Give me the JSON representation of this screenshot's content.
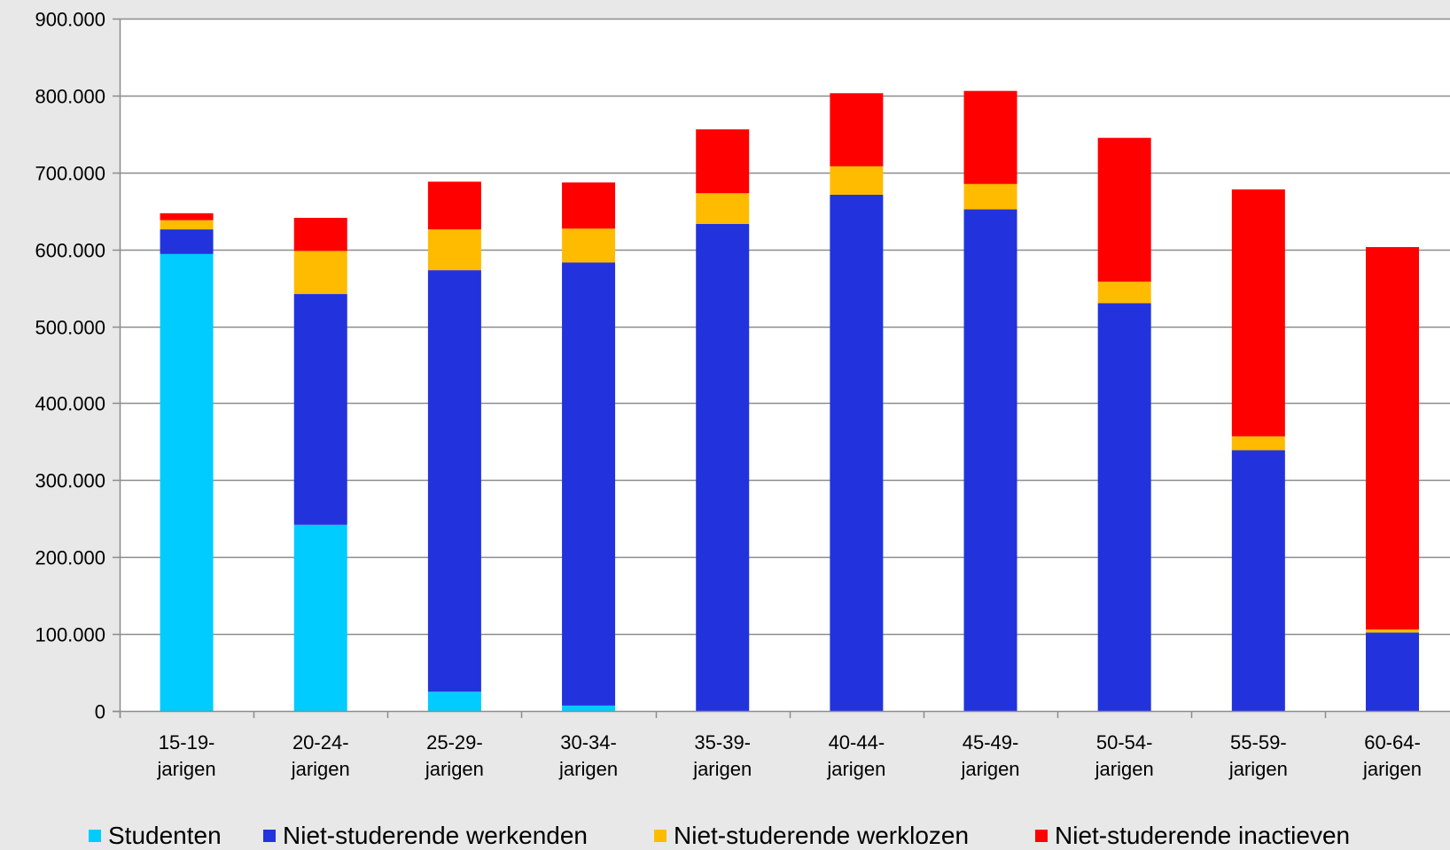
{
  "chart_data": {
    "type": "bar",
    "stacked": true,
    "title": "",
    "xlabel": "",
    "ylabel": "",
    "ylim": [
      0,
      900000
    ],
    "yticks": [
      0,
      100000,
      200000,
      300000,
      400000,
      500000,
      600000,
      700000,
      800000,
      900000
    ],
    "ytick_labels": [
      "0",
      "100.000",
      "200.000",
      "300.000",
      "400.000",
      "500.000",
      "600.000",
      "700.000",
      "800.000",
      "900.000"
    ],
    "grid": true,
    "legend_position": "bottom",
    "categories": [
      [
        "15-19-",
        "jarigen"
      ],
      [
        "20-24-",
        "jarigen"
      ],
      [
        "25-29-",
        "jarigen"
      ],
      [
        "30-34-",
        "jarigen"
      ],
      [
        "35-39-",
        "jarigen"
      ],
      [
        "40-44-",
        "jarigen"
      ],
      [
        "45-49-",
        "jarigen"
      ],
      [
        "50-54-",
        "jarigen"
      ],
      [
        "55-59-",
        "jarigen"
      ],
      [
        "60-64-",
        "jarigen"
      ]
    ],
    "series": [
      {
        "name": "Studenten",
        "color": "#00ccff",
        "values": [
          594000,
          242000,
          25000,
          7000,
          0,
          0,
          0,
          0,
          0,
          0
        ]
      },
      {
        "name": "Niet-studerende werkenden",
        "color": "#2233dd",
        "values": [
          32000,
          300000,
          548000,
          576000,
          633000,
          671000,
          652000,
          530000,
          339000,
          102000
        ]
      },
      {
        "name": "Niet-studerende werklozen",
        "color": "#ffbb00",
        "values": [
          12000,
          56000,
          53000,
          44000,
          40000,
          37000,
          33000,
          28000,
          18000,
          4000
        ]
      },
      {
        "name": "Niet-studerende inactieven",
        "color": "#ff0000",
        "values": [
          9000,
          43000,
          62000,
          60000,
          83000,
          95000,
          121000,
          187000,
          321000,
          497000
        ]
      }
    ]
  }
}
